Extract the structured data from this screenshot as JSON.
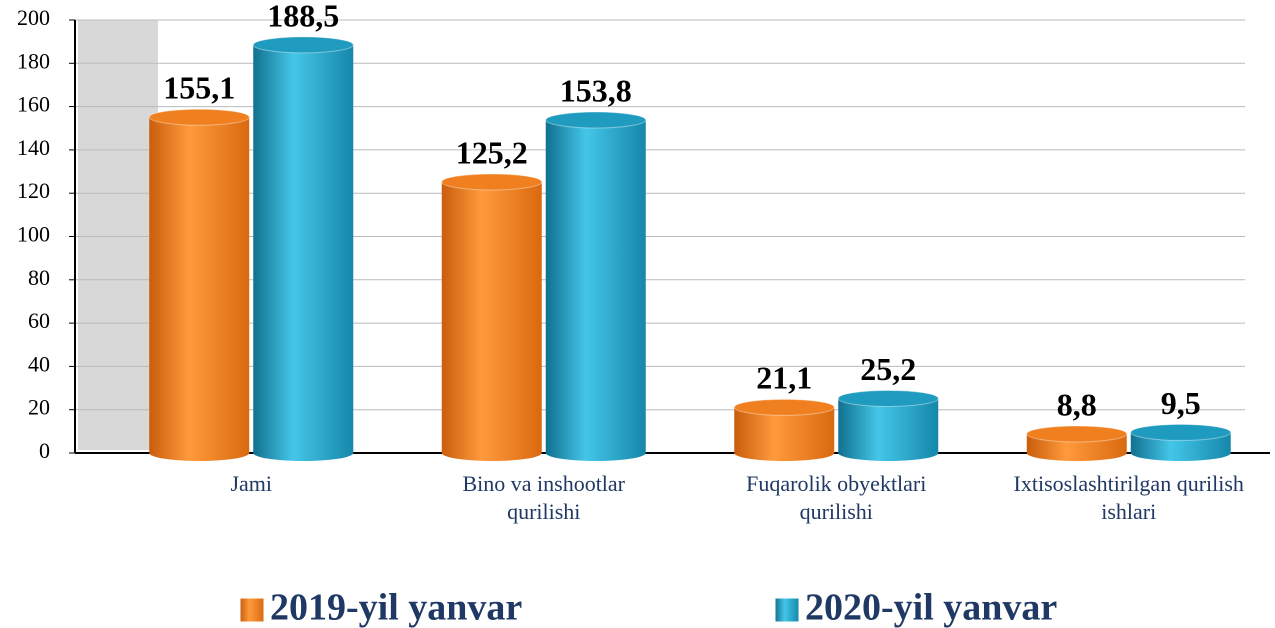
{
  "chart_data": {
    "type": "bar",
    "categories": [
      "Jami",
      "Bino va inshootlar qurilishi",
      "Fuqarolik obyektlari qurilishi",
      "Ixtisoslashtirilgan qurilish ishlari"
    ],
    "series": [
      {
        "name": "2019-yil yanvar",
        "color": "#f07f1f",
        "values": [
          155.1,
          125.2,
          21.1,
          8.8
        ],
        "value_labels": [
          "155,1",
          "125,2",
          "21,1",
          "8,8"
        ]
      },
      {
        "name": "2020-yil yanvar",
        "color": "#1f9bbf",
        "values": [
          188.5,
          153.8,
          25.2,
          9.5
        ],
        "value_labels": [
          "188,5",
          "153,8",
          "25,2",
          "9,5"
        ]
      }
    ],
    "ylim": [
      0,
      200
    ],
    "yticks": [
      0,
      20,
      40,
      60,
      80,
      100,
      120,
      140,
      160,
      180,
      200
    ],
    "grid": true,
    "legend": "bottom"
  }
}
